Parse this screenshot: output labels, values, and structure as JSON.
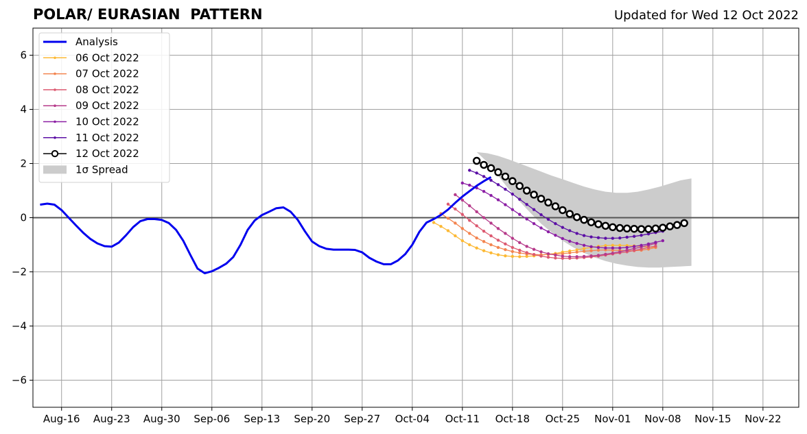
{
  "chart_data": {
    "type": "line",
    "title": "POLAR/ EURASIAN  PATTERN",
    "subtitle": "Updated for Wed 12 Oct 2022",
    "xlabel": "",
    "ylabel": "",
    "x_axis": {
      "start_date": "2022-08-12",
      "end_date": "2022-11-27",
      "tick_labels": [
        "Aug-16",
        "Aug-23",
        "Aug-30",
        "Sep-06",
        "Sep-13",
        "Sep-20",
        "Sep-27",
        "Oct-04",
        "Oct-11",
        "Oct-18",
        "Oct-25",
        "Nov-01",
        "Nov-08",
        "Nov-15",
        "Nov-22"
      ],
      "tick_dates": [
        "2022-08-16",
        "2022-08-23",
        "2022-08-30",
        "2022-09-06",
        "2022-09-13",
        "2022-09-20",
        "2022-09-27",
        "2022-10-04",
        "2022-10-11",
        "2022-10-18",
        "2022-10-25",
        "2022-11-01",
        "2022-11-08",
        "2022-11-15",
        "2022-11-22"
      ]
    },
    "y_axis": {
      "ylim": [
        -7,
        7
      ],
      "ticks": [
        -6,
        -4,
        -2,
        0,
        2,
        4,
        6
      ],
      "tick_labels": [
        "−6",
        "−4",
        "−2",
        "0",
        "2",
        "4",
        "6"
      ]
    },
    "grid": true,
    "zero_line": true,
    "legend_position": "top-left",
    "analysis": {
      "name": "Analysis",
      "color": "#0000ee",
      "start_date": "2022-08-13",
      "values": [
        0.48,
        0.52,
        0.48,
        0.28,
        0.0,
        -0.28,
        -0.55,
        -0.78,
        -0.95,
        -1.05,
        -1.07,
        -0.92,
        -0.65,
        -0.35,
        -0.13,
        -0.05,
        -0.05,
        -0.08,
        -0.2,
        -0.45,
        -0.85,
        -1.38,
        -1.88,
        -2.05,
        -1.98,
        -1.85,
        -1.7,
        -1.45,
        -1.0,
        -0.45,
        -0.1,
        0.1,
        0.22,
        0.35,
        0.38,
        0.22,
        -0.08,
        -0.5,
        -0.88,
        -1.05,
        -1.15,
        -1.18,
        -1.18,
        -1.18,
        -1.19,
        -1.28,
        -1.48,
        -1.62,
        -1.72,
        -1.72,
        -1.58,
        -1.35,
        -1.0,
        -0.52,
        -0.18,
        -0.05,
        0.1,
        0.3,
        0.55,
        0.78,
        0.98,
        1.18,
        1.35,
        1.5
      ]
    },
    "forecasts": [
      {
        "name": "06 Oct 2022",
        "color": "#fcb935",
        "start_date": "2022-10-07",
        "values": [
          -0.18,
          -0.32,
          -0.48,
          -0.67,
          -0.85,
          -1.0,
          -1.12,
          -1.22,
          -1.3,
          -1.37,
          -1.41,
          -1.43,
          -1.44,
          -1.43,
          -1.41,
          -1.38,
          -1.35,
          -1.32,
          -1.27,
          -1.23,
          -1.19,
          -1.14,
          -1.1,
          -1.06,
          -1.03,
          -1.02,
          -1.02,
          -1.03,
          -1.04,
          -1.06,
          -1.08,
          -1.1
        ]
      },
      {
        "name": "07 Oct 2022",
        "color": "#f3844f",
        "start_date": "2022-10-08",
        "values": [
          0.15,
          -0.02,
          -0.2,
          -0.4,
          -0.58,
          -0.75,
          -0.88,
          -1.0,
          -1.1,
          -1.18,
          -1.25,
          -1.3,
          -1.34,
          -1.36,
          -1.37,
          -1.36,
          -1.35,
          -1.33,
          -1.3,
          -1.27,
          -1.24,
          -1.22,
          -1.2,
          -1.19,
          -1.2,
          -1.21,
          -1.22,
          -1.22,
          -1.2,
          -1.16,
          -1.1
        ]
      },
      {
        "name": "08 Oct 2022",
        "color": "#dc5970",
        "start_date": "2022-10-09",
        "values": [
          0.5,
          0.32,
          0.12,
          -0.1,
          -0.3,
          -0.5,
          -0.67,
          -0.83,
          -0.97,
          -1.1,
          -1.2,
          -1.29,
          -1.36,
          -1.42,
          -1.46,
          -1.49,
          -1.5,
          -1.5,
          -1.49,
          -1.47,
          -1.45,
          -1.42,
          -1.38,
          -1.34,
          -1.3,
          -1.26,
          -1.21,
          -1.16,
          -1.1,
          -1.05
        ]
      },
      {
        "name": "09 Oct 2022",
        "color": "#b63a8a",
        "start_date": "2022-10-10",
        "values": [
          0.85,
          0.65,
          0.44,
          0.22,
          0.0,
          -0.2,
          -0.4,
          -0.58,
          -0.76,
          -0.92,
          -1.06,
          -1.17,
          -1.26,
          -1.33,
          -1.38,
          -1.42,
          -1.44,
          -1.44,
          -1.43,
          -1.41,
          -1.39,
          -1.35,
          -1.31,
          -1.26,
          -1.2,
          -1.14,
          -1.08,
          -1.02,
          -0.95
        ]
      },
      {
        "name": "10 Oct 2022",
        "color": "#8b1ea4",
        "start_date": "2022-10-11",
        "values": [
          1.28,
          1.2,
          1.1,
          0.97,
          0.82,
          0.66,
          0.48,
          0.3,
          0.12,
          -0.05,
          -0.22,
          -0.38,
          -0.52,
          -0.65,
          -0.77,
          -0.87,
          -0.95,
          -1.02,
          -1.07,
          -1.1,
          -1.12,
          -1.12,
          -1.12,
          -1.1,
          -1.06,
          -1.02,
          -0.97,
          -0.91,
          -0.85
        ]
      },
      {
        "name": "11 Oct 2022",
        "color": "#5b0fa5",
        "start_date": "2022-10-12",
        "values": [
          1.75,
          1.65,
          1.52,
          1.38,
          1.22,
          1.05,
          0.87,
          0.68,
          0.49,
          0.3,
          0.11,
          -0.06,
          -0.22,
          -0.36,
          -0.48,
          -0.58,
          -0.66,
          -0.71,
          -0.74,
          -0.76,
          -0.76,
          -0.75,
          -0.72,
          -0.69,
          -0.65,
          -0.6,
          -0.55,
          -0.5
        ]
      },
      {
        "name": "12 Oct 2022",
        "color": "#000000",
        "marker": "open-circle",
        "start_date": "2022-10-13",
        "values": [
          2.1,
          1.95,
          1.83,
          1.68,
          1.52,
          1.35,
          1.17,
          1.0,
          0.85,
          0.7,
          0.56,
          0.42,
          0.28,
          0.14,
          0.02,
          -0.08,
          -0.17,
          -0.24,
          -0.3,
          -0.35,
          -0.38,
          -0.4,
          -0.41,
          -0.42,
          -0.42,
          -0.4,
          -0.37,
          -0.32,
          -0.27,
          -0.2
        ]
      }
    ],
    "spread": {
      "name": "1σ Spread",
      "color": "#cccccc",
      "start_date": "2022-10-13",
      "end_date": "2022-11-12",
      "upper": [
        2.42,
        2.38,
        2.28,
        2.15,
        2.0,
        1.85,
        1.7,
        1.55,
        1.42,
        1.28,
        1.15,
        1.04,
        0.96,
        0.92,
        0.92,
        0.96,
        1.04,
        1.14,
        1.26,
        1.38,
        1.45
      ],
      "lower": [
        2.42,
        2.05,
        1.55,
        1.05,
        0.6,
        0.18,
        -0.22,
        -0.55,
        -0.85,
        -1.1,
        -1.3,
        -1.47,
        -1.6,
        -1.7,
        -1.77,
        -1.82,
        -1.84,
        -1.84,
        -1.82,
        -1.8,
        -1.78
      ]
    }
  }
}
